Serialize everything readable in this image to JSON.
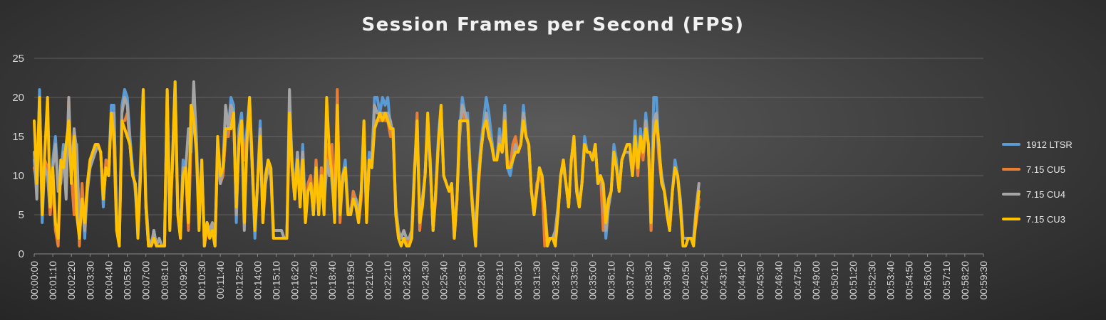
{
  "chart_data": {
    "type": "line",
    "title": "Session Frames per Second (FPS)",
    "xlabel": "",
    "ylabel": "",
    "ylim": [
      0,
      25
    ],
    "y_ticks": [
      0,
      5,
      10,
      15,
      20,
      25
    ],
    "grid": true,
    "legend_position": "right",
    "x_tick_labels": [
      "00:00:00",
      "00:01:10",
      "00:02:20",
      "00:03:30",
      "00:04:40",
      "00:05:50",
      "00:07:00",
      "00:08:10",
      "00:09:20",
      "00:10:30",
      "00:11:40",
      "00:12:50",
      "00:14:00",
      "00:15:10",
      "00:16:20",
      "00:17:30",
      "00:18:40",
      "00:19:50",
      "00:21:00",
      "00:22:10",
      "00:23:20",
      "00:24:30",
      "00:25:40",
      "00:26:50",
      "00:28:00",
      "00:29:10",
      "00:30:20",
      "00:31:30",
      "00:32:40",
      "00:33:50",
      "00:35:00",
      "00:36:10",
      "00:37:20",
      "00:38:30",
      "00:39:40",
      "00:40:50",
      "00:42:00",
      "00:43:10",
      "00:44:20",
      "00:45:30",
      "00:46:40",
      "00:47:50",
      "00:49:00",
      "00:50:10",
      "00:51:20",
      "00:52:30",
      "00:53:40",
      "00:54:50",
      "00:56:00",
      "00:57:10",
      "00:58:20",
      "00:59:30"
    ],
    "sample_interval_seconds": 10,
    "series": [
      {
        "name": "1912 LTSR",
        "color": "#5b9bd5",
        "values": [
          12,
          8,
          21,
          4,
          12,
          10,
          5,
          12,
          15,
          9,
          10,
          14,
          8,
          19,
          10,
          6,
          14,
          3,
          8,
          2,
          9,
          12,
          13,
          14,
          14,
          13,
          6,
          12,
          11,
          19,
          19,
          4,
          1,
          19,
          21,
          20,
          15,
          11,
          8,
          3,
          12,
          21,
          6,
          1,
          1,
          3,
          1,
          1,
          1,
          1,
          21,
          5,
          12,
          22,
          6,
          3,
          12,
          11,
          8,
          14,
          21,
          15,
          5,
          12,
          1,
          4,
          3,
          3,
          1,
          14,
          9,
          10,
          15,
          16,
          20,
          19,
          4,
          16,
          18,
          12,
          16,
          20,
          11,
          2,
          9,
          17,
          5,
          10,
          12,
          11,
          3,
          3,
          3,
          3,
          2,
          2,
          19,
          12,
          8,
          13,
          7,
          14,
          5,
          9,
          10,
          5,
          12,
          5,
          11,
          6,
          11,
          13,
          9,
          6,
          15,
          5,
          10,
          12,
          6,
          5,
          8,
          7,
          5,
          8,
          17,
          5,
          13,
          12,
          20,
          20,
          18,
          20,
          19,
          20,
          16,
          15,
          6,
          2,
          2,
          2,
          2,
          1,
          3,
          11,
          16,
          4,
          7,
          10,
          17,
          12,
          3,
          8,
          15,
          19,
          10,
          9,
          8,
          9,
          2,
          7,
          16,
          20,
          18,
          18,
          11,
          5,
          2,
          10,
          14,
          17,
          20,
          18,
          15,
          12,
          12,
          16,
          13,
          19,
          11,
          10,
          12,
          14,
          13,
          14,
          19,
          15,
          14,
          8,
          5,
          8,
          11,
          10,
          6,
          1,
          2,
          2,
          2,
          5,
          10,
          12,
          9,
          6,
          12,
          15,
          8,
          6,
          9,
          15,
          13,
          13,
          12,
          14,
          9,
          10,
          8,
          2,
          6,
          8,
          14,
          12,
          8,
          12,
          13,
          13,
          13,
          10,
          17,
          11,
          16,
          13,
          18,
          14,
          3,
          20,
          20,
          13,
          10,
          8,
          5,
          3,
          8,
          12,
          10,
          7,
          2,
          2,
          2,
          2,
          2,
          5,
          6
        ]
      },
      {
        "name": "7.15 CU5",
        "color": "#ed7d31",
        "values": [
          11,
          9,
          19,
          5,
          12,
          11,
          5,
          9,
          3,
          1,
          11,
          12,
          9,
          20,
          10,
          5,
          13,
          1,
          9,
          3,
          9,
          11,
          13,
          13,
          14,
          13,
          7,
          12,
          10,
          18,
          14,
          3,
          1,
          17,
          17,
          18,
          14,
          10,
          9,
          3,
          11,
          18,
          6,
          1,
          1,
          2,
          1,
          1,
          1,
          1,
          21,
          4,
          11,
          21,
          5,
          2,
          11,
          10,
          3,
          14,
          18,
          14,
          4,
          11,
          1,
          3,
          2,
          3,
          1,
          13,
          9,
          10,
          15,
          15,
          18,
          18,
          5,
          15,
          16,
          12,
          15,
          19,
          11,
          3,
          9,
          16,
          4,
          9,
          11,
          10,
          2,
          2,
          2,
          2,
          2,
          2,
          16,
          11,
          7,
          12,
          6,
          13,
          4,
          9,
          10,
          5,
          12,
          5,
          11,
          6,
          14,
          11,
          14,
          5,
          21,
          4,
          10,
          11,
          6,
          5,
          8,
          6,
          4,
          7,
          16,
          5,
          12,
          11,
          17,
          17,
          17,
          18,
          17,
          17,
          15,
          15,
          5,
          2,
          2,
          2,
          2,
          1,
          3,
          10,
          18,
          3,
          7,
          10,
          17,
          11,
          3,
          7,
          14,
          18,
          10,
          9,
          8,
          8,
          2,
          7,
          15,
          19,
          17,
          17,
          10,
          5,
          2,
          8,
          13,
          16,
          17,
          15,
          14,
          12,
          12,
          15,
          13,
          17,
          12,
          11,
          14,
          15,
          13,
          14,
          17,
          15,
          14,
          8,
          5,
          9,
          10,
          9,
          1,
          2,
          2,
          2,
          2,
          5,
          10,
          12,
          9,
          6,
          12,
          14,
          8,
          6,
          9,
          14,
          13,
          13,
          12,
          14,
          9,
          10,
          3,
          5,
          7,
          8,
          13,
          11,
          8,
          12,
          13,
          13,
          13,
          10,
          14,
          10,
          15,
          12,
          16,
          14,
          3,
          16,
          17,
          12,
          9,
          8,
          5,
          3,
          8,
          11,
          10,
          6,
          2,
          2,
          2,
          2,
          2,
          4,
          7
        ]
      },
      {
        "name": "7.15 CU4",
        "color": "#a5a5a5",
        "values": [
          13,
          7,
          20,
          6,
          11,
          10,
          6,
          11,
          14,
          8,
          9,
          13,
          7,
          20,
          9,
          16,
          13,
          4,
          7,
          3,
          8,
          11,
          12,
          13,
          14,
          13,
          7,
          11,
          10,
          18,
          18,
          5,
          2,
          18,
          20,
          19,
          14,
          10,
          9,
          4,
          11,
          20,
          7,
          2,
          1,
          3,
          1,
          2,
          1,
          1,
          20,
          6,
          11,
          21,
          5,
          3,
          11,
          11,
          16,
          13,
          22,
          14,
          5,
          11,
          2,
          4,
          3,
          4,
          2,
          13,
          9,
          11,
          19,
          16,
          19,
          18,
          5,
          15,
          17,
          3,
          15,
          19,
          11,
          3,
          9,
          16,
          5,
          9,
          11,
          10,
          3,
          3,
          3,
          3,
          2,
          2,
          21,
          11,
          8,
          13,
          7,
          13,
          5,
          8,
          9,
          5,
          11,
          6,
          10,
          6,
          12,
          10,
          10,
          6,
          18,
          5,
          9,
          11,
          6,
          5,
          7,
          7,
          5,
          8,
          16,
          5,
          12,
          12,
          19,
          18,
          18,
          18,
          18,
          18,
          17,
          15,
          6,
          3,
          2,
          3,
          2,
          2,
          3,
          10,
          17,
          5,
          7,
          10,
          17,
          11,
          3,
          8,
          14,
          18,
          10,
          9,
          8,
          9,
          3,
          7,
          15,
          19,
          18,
          17,
          10,
          6,
          3,
          9,
          13,
          16,
          18,
          16,
          14,
          12,
          12,
          15,
          13,
          18,
          11,
          11,
          12,
          14,
          13,
          14,
          18,
          15,
          14,
          8,
          6,
          8,
          11,
          10,
          6,
          2,
          2,
          2,
          3,
          6,
          10,
          11,
          9,
          6,
          12,
          15,
          9,
          6,
          9,
          14,
          13,
          13,
          12,
          14,
          9,
          10,
          8,
          3,
          6,
          8,
          13,
          11,
          8,
          12,
          13,
          13,
          13,
          10,
          15,
          11,
          15,
          13,
          17,
          14,
          4,
          17,
          18,
          13,
          10,
          8,
          6,
          4,
          8,
          11,
          10,
          7,
          2,
          2,
          2,
          2,
          2,
          6,
          9
        ]
      },
      {
        "name": "7.15 CU3",
        "color": "#ffc000",
        "values": [
          17,
          9,
          20,
          5,
          13,
          20,
          6,
          11,
          4,
          2,
          12,
          11,
          14,
          17,
          9,
          15,
          5,
          2,
          7,
          4,
          9,
          12,
          13,
          14,
          14,
          13,
          7,
          11,
          10,
          18,
          15,
          3,
          1,
          17,
          16,
          15,
          14,
          10,
          9,
          2,
          10,
          21,
          6,
          1,
          1,
          2,
          1,
          1,
          1,
          1,
          21,
          3,
          12,
          22,
          5,
          2,
          10,
          11,
          4,
          19,
          17,
          13,
          3,
          12,
          1,
          4,
          2,
          3,
          1,
          15,
          10,
          11,
          16,
          16,
          16,
          18,
          6,
          14,
          17,
          4,
          14,
          20,
          12,
          3,
          9,
          15,
          4,
          10,
          12,
          11,
          2,
          2,
          2,
          2,
          2,
          2,
          18,
          11,
          7,
          12,
          6,
          12,
          4,
          8,
          9,
          5,
          11,
          5,
          10,
          5,
          20,
          13,
          10,
          4,
          19,
          5,
          10,
          11,
          5,
          5,
          7,
          6,
          4,
          8,
          17,
          4,
          12,
          11,
          16,
          17,
          18,
          17,
          18,
          17,
          16,
          16,
          5,
          2,
          1,
          2,
          1,
          1,
          2,
          10,
          17,
          4,
          6,
          10,
          18,
          11,
          3,
          8,
          14,
          19,
          10,
          9,
          8,
          9,
          2,
          7,
          17,
          17,
          17,
          17,
          10,
          5,
          1,
          9,
          13,
          16,
          17,
          15,
          14,
          12,
          12,
          14,
          13,
          17,
          11,
          11,
          12,
          13,
          13,
          14,
          17,
          15,
          14,
          8,
          5,
          8,
          11,
          10,
          6,
          1,
          2,
          2,
          1,
          5,
          10,
          12,
          9,
          6,
          12,
          15,
          8,
          6,
          9,
          14,
          13,
          13,
          12,
          14,
          9,
          10,
          9,
          4,
          7,
          8,
          13,
          11,
          8,
          12,
          13,
          14,
          14,
          10,
          15,
          11,
          15,
          13,
          16,
          14,
          4,
          15,
          17,
          14,
          9,
          8,
          5,
          3,
          8,
          11,
          10,
          6,
          1,
          1,
          2,
          2,
          1,
          5,
          8
        ]
      }
    ]
  }
}
